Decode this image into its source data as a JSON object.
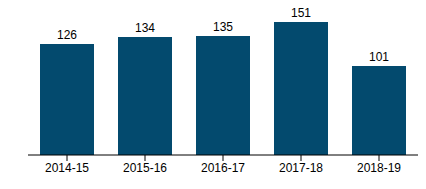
{
  "chart_data": {
    "type": "bar",
    "categories": [
      "2014-15",
      "2015-16",
      "2016-17",
      "2017-18",
      "2018-19"
    ],
    "values": [
      126,
      134,
      135,
      151,
      101
    ],
    "color": "#034a6e",
    "ylim": [
      0,
      160
    ],
    "grid": false,
    "data_labels": true,
    "tick_labels": "x"
  }
}
